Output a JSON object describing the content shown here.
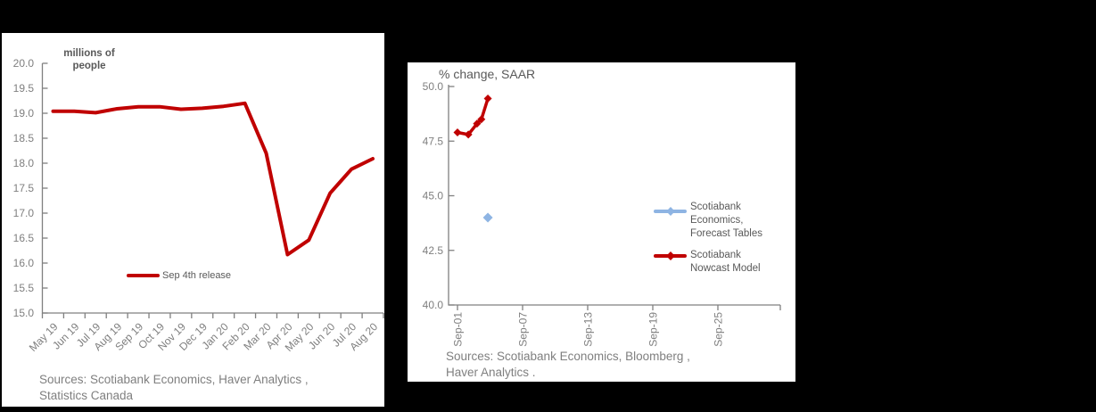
{
  "colors": {
    "background": "#000000",
    "panel": "#FFFFFF",
    "axis": "#808080",
    "tick_label": "#7F7F7F",
    "title_gray": "#595959",
    "red": "#C00000",
    "blue": "#8EB4E3"
  },
  "chart_data": [
    {
      "id": "canada-employment",
      "type": "line",
      "title": "millions of people",
      "title_lines": [
        "millions of",
        "people"
      ],
      "categories": [
        "May 19",
        "Jun 19",
        "Jul 19",
        "Aug 19",
        "Sep 19",
        "Oct 19",
        "Nov 19",
        "Dec 19",
        "Jan 20",
        "Feb 20",
        "Mar 20",
        "Apr 20",
        "May 20",
        "Jun 20",
        "Jul 20",
        "Aug 20"
      ],
      "series": [
        {
          "name": "Sep 4th release",
          "color": "#C00000",
          "values": [
            19.04,
            19.04,
            19.01,
            19.09,
            19.13,
            19.13,
            19.08,
            19.1,
            19.14,
            19.2,
            18.2,
            16.17,
            16.46,
            17.4,
            17.88,
            18.09
          ]
        }
      ],
      "ylim": [
        15.0,
        20.0
      ],
      "yticks": [
        15.0,
        15.5,
        16.0,
        16.5,
        17.0,
        17.5,
        18.0,
        18.5,
        19.0,
        19.5,
        20.0
      ],
      "grid": false,
      "legend_position": "inside-bottom-left",
      "sources_lines": [
        "Sources: Scotiabank Economics, Haver Analytics ,",
        "Statistics Canada"
      ]
    },
    {
      "id": "gdp-nowcast",
      "type": "line",
      "title": "% change, SAAR",
      "x_tick_labels": [
        "Sep-01",
        "Sep-07",
        "Sep-13",
        "Sep-19",
        "Sep-25"
      ],
      "x_tick_days": [
        0,
        6,
        12,
        18,
        24
      ],
      "x_axis_end_day": 29.7,
      "series": [
        {
          "name": "Scotiabank Economics, Forecast Tables",
          "label_lines": [
            "Scotiabank",
            "Economics,",
            "Forecast Tables"
          ],
          "color": "#8EB4E3",
          "style": "scatter",
          "points": [
            {
              "day": 2.8,
              "date": "Sep-04",
              "value": 44.0
            }
          ]
        },
        {
          "name": "Scotiabank Nowcast Model",
          "label_lines": [
            "Scotiabank",
            "Nowcast Model"
          ],
          "color": "#C00000",
          "style": "line-markers",
          "points": [
            {
              "day": 0.0,
              "date": "Sep-01",
              "value": 47.9
            },
            {
              "day": 1.0,
              "date": "Sep-02",
              "value": 47.8
            },
            {
              "day": 1.8,
              "date": "Sep-03",
              "value": 48.3
            },
            {
              "day": 2.2,
              "date": "Sep-03",
              "value": 48.5
            },
            {
              "day": 2.8,
              "date": "Sep-04",
              "value": 49.45
            }
          ]
        }
      ],
      "ylim": [
        40.0,
        50.0
      ],
      "yticks": [
        40.0,
        42.5,
        45.0,
        47.5,
        50.0
      ],
      "grid": false,
      "legend_position": "right-inside",
      "sources_lines": [
        "Sources: Scotiabank Economics, Bloomberg ,",
        "Haver Analytics ."
      ]
    }
  ]
}
